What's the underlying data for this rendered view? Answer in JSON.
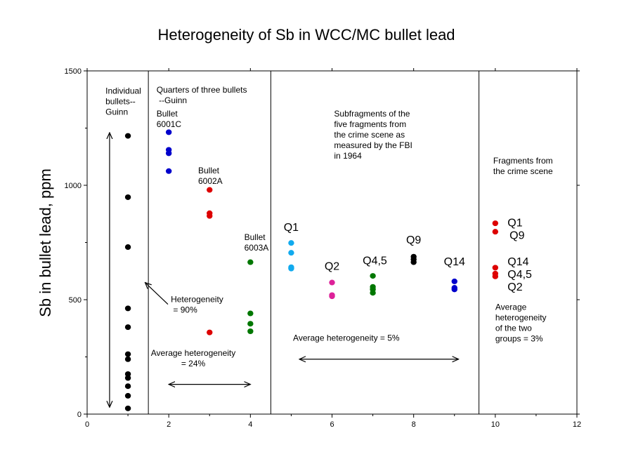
{
  "chart_data": {
    "type": "scatter",
    "title": "Heterogeneity of Sb in WCC/MC bullet lead",
    "xlabel": "",
    "ylabel": "Sb in bullet lead, ppm",
    "xlim": [
      0,
      12
    ],
    "ylim": [
      0,
      1500
    ],
    "x_ticks": [
      "0",
      "2",
      "4",
      "6",
      "8",
      "10",
      "12"
    ],
    "y_ticks": [
      "0",
      "500",
      "1000",
      "1500"
    ],
    "grid": false,
    "dividers_x": [
      1.5,
      4.5,
      9.6
    ],
    "colors": {
      "black": "#000000",
      "blue": "#0000cc",
      "red": "#dd0000",
      "green": "#007700",
      "cyan": "#11aaee",
      "magenta": "#dd2299"
    },
    "series": [
      {
        "color": "#000000",
        "points": [
          [
            1,
            1216
          ],
          [
            1,
            948
          ],
          [
            1,
            730
          ],
          [
            1,
            462
          ],
          [
            1,
            380
          ],
          [
            1,
            262
          ],
          [
            1,
            240
          ],
          [
            1,
            175
          ],
          [
            1,
            158
          ],
          [
            1,
            122
          ],
          [
            1,
            80
          ],
          [
            1,
            25
          ]
        ]
      },
      {
        "color": "#0000cc",
        "points": [
          [
            2,
            1232
          ],
          [
            2,
            1155
          ],
          [
            2,
            1140
          ],
          [
            2,
            1062
          ]
        ]
      },
      {
        "color": "#dd0000",
        "points": [
          [
            3,
            980
          ],
          [
            3,
            878
          ],
          [
            3,
            866
          ],
          [
            3,
            357
          ]
        ]
      },
      {
        "color": "#007700",
        "points": [
          [
            4,
            664
          ],
          [
            4,
            440
          ],
          [
            4,
            395
          ],
          [
            4,
            362
          ]
        ]
      },
      {
        "color": "#11aaee",
        "points": [
          [
            5,
            748
          ],
          [
            5,
            705
          ],
          [
            5,
            642
          ],
          [
            5,
            636
          ]
        ]
      },
      {
        "color": "#dd2299",
        "points": [
          [
            6,
            575
          ],
          [
            6,
            520
          ],
          [
            6,
            515
          ]
        ]
      },
      {
        "color": "#007700",
        "points": [
          [
            7,
            604
          ],
          [
            7,
            556
          ],
          [
            7,
            545
          ],
          [
            7,
            530
          ]
        ]
      },
      {
        "color": "#000000",
        "points": [
          [
            8,
            688
          ],
          [
            8,
            676
          ],
          [
            8,
            664
          ]
        ]
      },
      {
        "color": "#0000cc",
        "points": [
          [
            9,
            580
          ],
          [
            9,
            552
          ],
          [
            9,
            545
          ]
        ]
      },
      {
        "color": "#dd0000",
        "points": [
          [
            10,
            834
          ],
          [
            10,
            797
          ],
          [
            10,
            640
          ],
          [
            10,
            614
          ],
          [
            10,
            602
          ]
        ]
      }
    ],
    "annotations": [
      {
        "id": "ann-individual-bullets",
        "lines": [
          "Individual",
          "bullets--",
          "Guinn"
        ],
        "x": 0.45,
        "y": 1400,
        "size": 12
      },
      {
        "id": "ann-quarters",
        "lines": [
          "Quarters of three bullets",
          "  --Guinn"
        ],
        "x": 1.7,
        "y": 1405,
        "size": 12
      },
      {
        "id": "ann-bullet-6001c",
        "lines": [
          "Bullet",
          "6001C"
        ],
        "x": 1.7,
        "y": 1300,
        "size": 12
      },
      {
        "id": "ann-bullet-6002a",
        "lines": [
          "Bullet",
          "6002A"
        ],
        "x": 2.72,
        "y": 1052,
        "size": 12
      },
      {
        "id": "ann-bullet-6003a",
        "lines": [
          "Bullet",
          "6003A"
        ],
        "x": 3.85,
        "y": 760,
        "size": 12
      },
      {
        "id": "ann-heterogeneity-90",
        "lines": [
          "Heterogeneity",
          "  = 90%"
        ],
        "x": 2.05,
        "y": 490,
        "size": 12
      },
      {
        "id": "ann-avg-het-24",
        "lines": [
          "Average heterogeneity",
          "= 24%"
        ],
        "x": 2.6,
        "y": 255,
        "size": 12,
        "anchor": "middle"
      },
      {
        "id": "ann-subfragments",
        "lines": [
          "Subfragments of the",
          "five fragments from",
          "the crime scene as",
          "measured by the FBI",
          "in 1964"
        ],
        "x": 6.05,
        "y": 1300,
        "size": 12
      },
      {
        "id": "ann-avg-het-5",
        "lines": [
          "Average heterogeneity = 5%"
        ],
        "x": 6.35,
        "y": 320,
        "size": 12,
        "anchor": "middle"
      },
      {
        "id": "ann-fragments",
        "lines": [
          "Fragments from",
          "the crime scene"
        ],
        "x": 9.95,
        "y": 1095,
        "size": 12
      },
      {
        "id": "ann-avg-het-3",
        "lines": [
          "Average",
          "heterogeneity",
          "of the two",
          "groups = 3%"
        ],
        "x": 10.0,
        "y": 455,
        "size": 12
      },
      {
        "id": "label-q1-mid",
        "lines": [
          "Q1"
        ],
        "x": 5.0,
        "y": 800,
        "size": 16,
        "anchor": "middle"
      },
      {
        "id": "label-q2-mid",
        "lines": [
          "Q2"
        ],
        "x": 6.0,
        "y": 630,
        "size": 16,
        "anchor": "middle"
      },
      {
        "id": "label-q45-mid",
        "lines": [
          "Q4,5"
        ],
        "x": 7.05,
        "y": 655,
        "size": 16,
        "anchor": "middle"
      },
      {
        "id": "label-q9-mid",
        "lines": [
          "Q9"
        ],
        "x": 8.0,
        "y": 745,
        "size": 16,
        "anchor": "middle"
      },
      {
        "id": "label-q14-mid",
        "lines": [
          "Q14"
        ],
        "x": 9.0,
        "y": 650,
        "size": 16,
        "anchor": "middle"
      },
      {
        "id": "label-q1-right",
        "lines": [
          "Q1"
        ],
        "x": 10.3,
        "y": 820,
        "size": 16
      },
      {
        "id": "label-q9-right",
        "lines": [
          "Q9"
        ],
        "x": 10.35,
        "y": 765,
        "size": 16
      },
      {
        "id": "label-q14-right",
        "lines": [
          "Q14"
        ],
        "x": 10.3,
        "y": 650,
        "size": 16
      },
      {
        "id": "label-q45-right",
        "lines": [
          "Q4,5"
        ],
        "x": 10.3,
        "y": 595,
        "size": 16
      },
      {
        "id": "label-q2-right",
        "lines": [
          "Q2"
        ],
        "x": 10.3,
        "y": 540,
        "size": 16
      }
    ],
    "arrows": [
      {
        "id": "arrow-individual-range",
        "from": [
          0.55,
          1230
        ],
        "to": [
          0.55,
          30
        ],
        "heads": "both"
      },
      {
        "id": "arrow-heterogeneity-pointer",
        "from": [
          1.98,
          480
        ],
        "to": [
          1.42,
          575
        ],
        "heads": "end"
      },
      {
        "id": "arrow-avg-24",
        "from": [
          2.0,
          130
        ],
        "to": [
          4.0,
          130
        ],
        "heads": "both"
      },
      {
        "id": "arrow-avg-5",
        "from": [
          5.2,
          240
        ],
        "to": [
          9.1,
          240
        ],
        "heads": "both"
      }
    ]
  }
}
